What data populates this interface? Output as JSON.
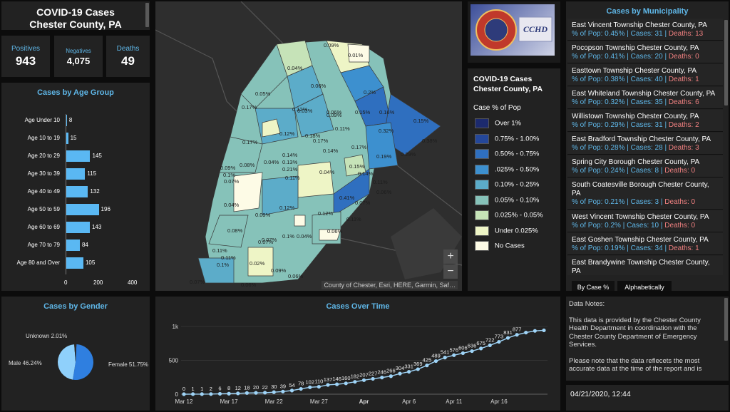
{
  "title": {
    "line1": "COVID-19 Cases",
    "line2": "Chester County, PA"
  },
  "stats": [
    {
      "label": "Positives",
      "value": "943"
    },
    {
      "label": "Negatives",
      "value": "4,075"
    },
    {
      "label": "Deaths",
      "value": "49"
    }
  ],
  "age_chart": {
    "title": "Cases by Age Group",
    "categories": [
      "Age Under 10",
      "Age 10 to 19",
      "Age 20 to 29",
      "Age 30 to 39",
      "Age 40 to 49",
      "Age 50 to 59",
      "Age 60 to 69",
      "Age 70 to 79",
      "Age 80 and Over"
    ],
    "values": [
      8,
      15,
      145,
      115,
      132,
      196,
      143,
      84,
      105
    ],
    "ticks": [
      "0",
      "200",
      "400"
    ],
    "xlim": [
      0,
      400
    ]
  },
  "map": {
    "labels": [
      "0.09%",
      "0.01%",
      "0.04%",
      "0.06%",
      "0.05%",
      "0.2%",
      "0.12%",
      "0.06%",
      "0.17%",
      "0.03%",
      "0.09%",
      "0.15%",
      "0.16%",
      "0.15%",
      "0.12%",
      "0.18%",
      "0.11%",
      "0.32%",
      "0.17%",
      "0.38%",
      "0.17%",
      "0.14%",
      "0.14%",
      "0.17%",
      "0.29%",
      "0.19%",
      "0.09%",
      "0.08%",
      "0.04%",
      "0.13%",
      "0.21%",
      "0.11%",
      "0.04%",
      "0.15%",
      "0.14%",
      "0.1%",
      "0.11%",
      "0.06%",
      "0.07%",
      "0.04%",
      "0.41%",
      "0.07%",
      "0.09%",
      "0.12%",
      "0.12%",
      "0.11%",
      "0.08%",
      "0.07%",
      "0.04%",
      "0.06%",
      "0.1%",
      "0.07%",
      "0.11%",
      "0.11%",
      "0.02%",
      "0.09%",
      "0.06%",
      "0.07%",
      "0.06%",
      "0.1%"
    ],
    "zoom_in": "+",
    "zoom_out": "−",
    "attribution": "County of Chester, Esri, HERE, Garmin, Saf…"
  },
  "logo": {
    "seal_text": "CHESTER COUNTY",
    "text": "CCHD"
  },
  "legend": {
    "title_line1": "COVID-19 Cases",
    "title_line2": "Chester County, PA",
    "subtitle": "Case % of Pop",
    "items": [
      {
        "label": "Over 1%",
        "color": "#1c2a6e"
      },
      {
        "label": "0.75% - 1.00%",
        "color": "#24479a"
      },
      {
        "label": "0.50% - 0.75%",
        "color": "#2f6fbf"
      },
      {
        "label": ".025% - 0.50%",
        "color": "#3d90cf"
      },
      {
        "label": "0.10% - 0.25%",
        "color": "#5cacc9"
      },
      {
        "label": "0.05% - 0.10%",
        "color": "#86c2b9"
      },
      {
        "label": "0.025% - 0.05%",
        "color": "#c6e3b8"
      },
      {
        "label": "Under 0.025%",
        "color": "#eef5c6"
      },
      {
        "label": "No Cases",
        "color": "#fdfbe6"
      }
    ]
  },
  "municipalities": {
    "title": "Cases by Municipality",
    "items": [
      {
        "name": "East Vincent Township   Chester County, PA",
        "pop": "% of Pop: 0.45%",
        "cases": "Cases: 31",
        "deaths": "Deaths: 13"
      },
      {
        "name": "Pocopson Township   Chester County, PA",
        "pop": "% of Pop: 0.41%",
        "cases": "Cases: 20",
        "deaths": "Deaths: 0"
      },
      {
        "name": "Easttown Township   Chester County, PA",
        "pop": "% of Pop: 0.38%",
        "cases": "Cases: 40",
        "deaths": "Deaths: 1"
      },
      {
        "name": "East Whiteland Township   Chester County, PA",
        "pop": "% of Pop: 0.32%",
        "cases": "Cases: 35",
        "deaths": "Deaths: 6"
      },
      {
        "name": "Willistown Township   Chester County, PA",
        "pop": "% of Pop: 0.29%",
        "cases": "Cases: 31",
        "deaths": "Deaths: 2"
      },
      {
        "name": "East Bradford Township   Chester County, PA",
        "pop": "% of Pop: 0.28%",
        "cases": "Cases: 28",
        "deaths": "Deaths: 3"
      },
      {
        "name": "Spring City Borough   Chester County, PA",
        "pop": "% of Pop: 0.24%",
        "cases": "Cases: 8",
        "deaths": "Deaths: 0"
      },
      {
        "name": "South Coatesville Borough   Chester County, PA",
        "pop": "% of Pop: 0.21%",
        "cases": "Cases: 3",
        "deaths": "Deaths: 0"
      },
      {
        "name": "West Vincent Township   Chester County, PA",
        "pop": "% of Pop: 0.2%",
        "cases": "Cases: 10",
        "deaths": "Deaths: 0"
      },
      {
        "name": "East Goshen Township   Chester County, PA",
        "pop": "% of Pop: 0.19%",
        "cases": "Cases: 34",
        "deaths": "Deaths: 1"
      },
      {
        "name": "East Brandywine Township   Chester County, PA",
        "pop": "",
        "cases": "",
        "deaths": ""
      }
    ],
    "tabs": [
      "By Case %",
      "Alphabetically"
    ]
  },
  "gender": {
    "title": "Cases by Gender",
    "slices": [
      {
        "label": "Female 51.75%",
        "value": 51.75,
        "color": "#2f7fe0"
      },
      {
        "label": "Male 46.24%",
        "value": 46.24,
        "color": "#8fd0fb"
      },
      {
        "label": "Unknown 2.01%",
        "value": 2.01,
        "color": "#2a2a2a"
      }
    ]
  },
  "timeline": {
    "title": "Cases Over Time",
    "y_ticks": [
      "0",
      "500",
      "1k"
    ],
    "x_ticks": [
      "Mar 12",
      "Mar 17",
      "Mar 22",
      "Mar 27",
      "Apr",
      "Apr 6",
      "Apr 11",
      "Apr 16"
    ],
    "point_labels": [
      "0",
      "1",
      "1",
      "2",
      "6",
      "8",
      "12",
      "18",
      "20",
      "22",
      "30",
      "39",
      "54",
      "78",
      "102",
      "110",
      "137",
      "146",
      "160",
      "182",
      "207",
      "227",
      "246",
      "266",
      "304",
      "331",
      "369",
      "425",
      "489",
      "541",
      "576",
      "606",
      "636",
      "675",
      "722",
      "773",
      "831",
      "877"
    ]
  },
  "chart_data": {
    "type": "line",
    "title": "Cases Over Time",
    "x": [
      "Mar 12",
      "Mar 13",
      "Mar 14",
      "Mar 15",
      "Mar 16",
      "Mar 17",
      "Mar 18",
      "Mar 19",
      "Mar 20",
      "Mar 21",
      "Mar 22",
      "Mar 23",
      "Mar 24",
      "Mar 25",
      "Mar 26",
      "Mar 27",
      "Mar 28",
      "Mar 29",
      "Mar 30",
      "Mar 31",
      "Apr 1",
      "Apr 2",
      "Apr 3",
      "Apr 4",
      "Apr 5",
      "Apr 6",
      "Apr 7",
      "Apr 8",
      "Apr 9",
      "Apr 10",
      "Apr 11",
      "Apr 12",
      "Apr 13",
      "Apr 14",
      "Apr 15",
      "Apr 16",
      "Apr 17",
      "Apr 18",
      "Apr 19",
      "Apr 20",
      "Apr 21"
    ],
    "values": [
      0,
      1,
      1,
      2,
      6,
      8,
      12,
      18,
      20,
      22,
      30,
      39,
      54,
      78,
      102,
      110,
      137,
      146,
      160,
      182,
      207,
      227,
      246,
      266,
      304,
      331,
      369,
      425,
      489,
      541,
      576,
      606,
      636,
      675,
      722,
      773,
      831,
      877,
      910,
      935,
      943
    ],
    "ylim": [
      0,
      1000
    ]
  },
  "notes": {
    "heading": "Data Notes:",
    "p1": "This data is provided by the Chester County Health Department in coordination with the Chester County Department of Emergency Services.",
    "p2": "Please note that the data reflecets the most accurate data at the time of the report and is"
  },
  "timestamp": "04/21/2020, 12:44"
}
